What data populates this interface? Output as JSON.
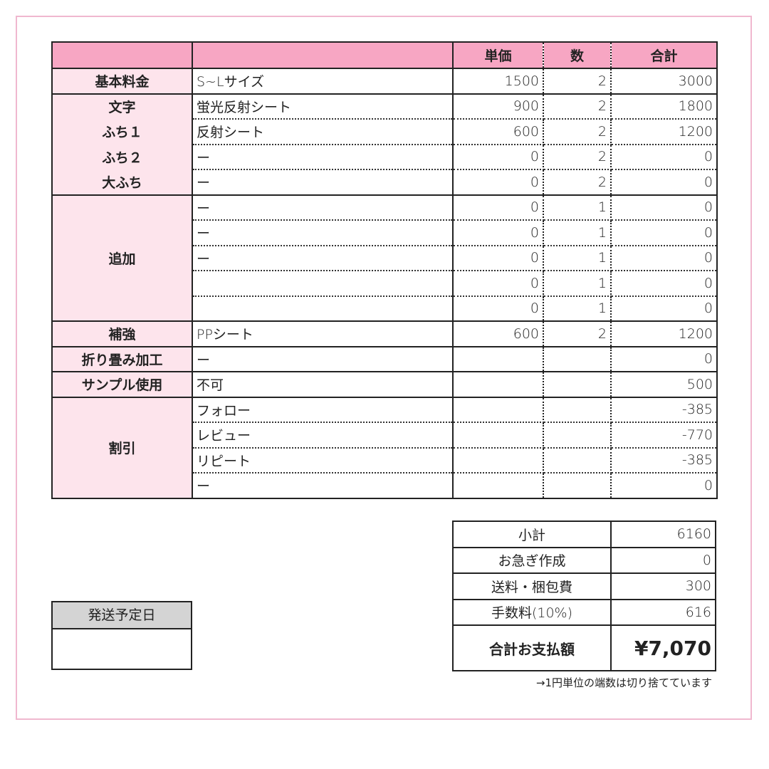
{
  "header": {
    "col1": "",
    "col2": "",
    "unit_price": "単価",
    "qty": "数",
    "total": "合計"
  },
  "colors": {
    "header_pink": "#f7a6c3",
    "label_pink": "#fde4ec",
    "frame_pink": "#f0b8cf",
    "ship_header_grey": "#d4d4d4"
  },
  "rows": [
    {
      "label": "基本料金",
      "span": 1,
      "desc": "S~Lサイズ",
      "unit": "1500",
      "qty": "2",
      "total": "3000",
      "end": true
    },
    {
      "label": "文字",
      "span": 1,
      "desc": "蛍光反射シート",
      "unit": "900",
      "qty": "2",
      "total": "1800",
      "end": false
    },
    {
      "label": "ふち１",
      "span": 1,
      "desc": "反射シート",
      "unit": "600",
      "qty": "2",
      "total": "1200",
      "end": false
    },
    {
      "label": "ふち２",
      "span": 1,
      "desc": "ー",
      "unit": "0",
      "qty": "2",
      "total": "0",
      "end": false
    },
    {
      "label": "大ふち",
      "span": 1,
      "desc": "ー",
      "unit": "0",
      "qty": "2",
      "total": "0",
      "end": true
    },
    {
      "label": "追加",
      "span": 5,
      "desc": "ー",
      "unit": "0",
      "qty": "1",
      "total": "0",
      "end": false
    },
    {
      "label": null,
      "desc": "ー",
      "unit": "0",
      "qty": "1",
      "total": "0",
      "end": false
    },
    {
      "label": null,
      "desc": "ー",
      "unit": "0",
      "qty": "1",
      "total": "0",
      "end": false
    },
    {
      "label": null,
      "desc": "",
      "unit": "0",
      "qty": "1",
      "total": "0",
      "end": false
    },
    {
      "label": null,
      "desc": "",
      "unit": "0",
      "qty": "1",
      "total": "0",
      "end": true
    },
    {
      "label": "補強",
      "span": 1,
      "desc": "PPシート",
      "unit": "600",
      "qty": "2",
      "total": "1200",
      "end": true
    },
    {
      "label": "折り畳み加工",
      "span": 1,
      "desc": "ー",
      "unit": "",
      "qty": "",
      "total": "0",
      "end": true
    },
    {
      "label": "サンプル使用",
      "span": 1,
      "desc": "不可",
      "unit": "",
      "qty": "",
      "total": "500",
      "end": true
    },
    {
      "label": "割引",
      "span": 4,
      "desc": "フォロー",
      "unit": "",
      "qty": "",
      "total": "-385",
      "end": false
    },
    {
      "label": null,
      "desc": "レビュー",
      "unit": "",
      "qty": "",
      "total": "-770",
      "end": false
    },
    {
      "label": null,
      "desc": "リピート",
      "unit": "",
      "qty": "",
      "total": "-385",
      "end": false
    },
    {
      "label": null,
      "desc": "ー",
      "unit": "",
      "qty": "",
      "total": "0",
      "end": true
    }
  ],
  "summary": [
    {
      "label": "小計",
      "value": "6160"
    },
    {
      "label": "お急ぎ作成",
      "value": "0"
    },
    {
      "label": "送料・梱包費",
      "value": "300"
    },
    {
      "label": "手数料(10%)",
      "value": "616"
    },
    {
      "label": "合計お支払額",
      "value": "¥7,070",
      "total": true
    }
  ],
  "note": "→1円単位の端数は切り捨てています",
  "shipping": {
    "label": "発送予定日",
    "value": ""
  }
}
